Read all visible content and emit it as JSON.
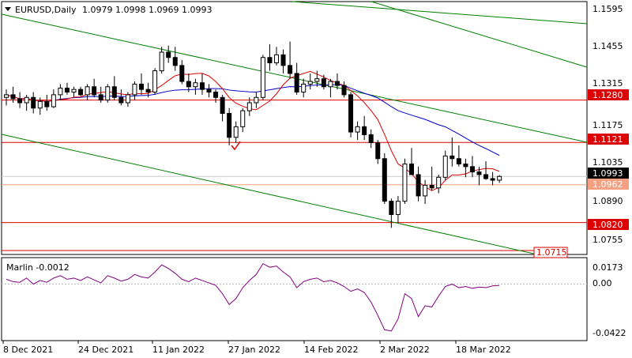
{
  "header": {
    "symbol": "EURUSD,Daily",
    "ohlc": "1.0979 1.0998 1.0969 1.0993"
  },
  "indicator": {
    "label": "Marlin -0.0012",
    "axis_labels": [
      "0.0173",
      "0.00",
      "-0.0422"
    ],
    "color": "#800080"
  },
  "price_axis": {
    "labels": [
      "1.1595",
      "1.1455",
      "1.1315",
      "1.1175",
      "1.1035",
      "1.0890",
      "1.0755"
    ]
  },
  "time_axis": {
    "labels": [
      "8 Dec 2021",
      "24 Dec 2021",
      "11 Jan 2022",
      "27 Jan 2022",
      "14 Feb 2022",
      "2 Mar 2022",
      "18 Mar 2022"
    ]
  },
  "colors": {
    "trend_channel": "#008000",
    "horizontal_level": "#dd0000",
    "fast_ma": "#dd0000",
    "slow_ma": "#0000cc",
    "oscillator": "#800080",
    "current_price_box": "#000000",
    "bid_line": "#f5a080"
  },
  "chart_data": {
    "type": "candlestick",
    "symbol": "EURUSD",
    "timeframe": "Daily",
    "ylim": [
      1.07,
      1.165
    ],
    "current_price": 1.0993,
    "bid_level": 1.0962,
    "horizontal_levels": [
      1.128,
      1.1121,
      1.082,
      1.0715
    ],
    "ohlc": [
      [
        1.129,
        1.132,
        1.126,
        1.13
      ],
      [
        1.13,
        1.133,
        1.127,
        1.1285
      ],
      [
        1.1285,
        1.131,
        1.125,
        1.127
      ],
      [
        1.127,
        1.13,
        1.124,
        1.129
      ],
      [
        1.129,
        1.131,
        1.123,
        1.125
      ],
      [
        1.125,
        1.129,
        1.1225,
        1.1275
      ],
      [
        1.1275,
        1.13,
        1.124,
        1.1255
      ],
      [
        1.1255,
        1.132,
        1.125,
        1.13
      ],
      [
        1.13,
        1.134,
        1.128,
        1.1325
      ],
      [
        1.1325,
        1.1345,
        1.13,
        1.131
      ],
      [
        1.131,
        1.133,
        1.129,
        1.132
      ],
      [
        1.132,
        1.133,
        1.1295,
        1.13
      ],
      [
        1.13,
        1.134,
        1.128,
        1.133
      ],
      [
        1.133,
        1.136,
        1.129,
        1.13
      ],
      [
        1.13,
        1.133,
        1.127,
        1.128
      ],
      [
        1.128,
        1.134,
        1.127,
        1.133
      ],
      [
        1.133,
        1.137,
        1.128,
        1.129
      ],
      [
        1.129,
        1.132,
        1.126,
        1.127
      ],
      [
        1.127,
        1.131,
        1.1255,
        1.13
      ],
      [
        1.13,
        1.135,
        1.128,
        1.134
      ],
      [
        1.134,
        1.138,
        1.13,
        1.132
      ],
      [
        1.132,
        1.1345,
        1.129,
        1.131
      ],
      [
        1.131,
        1.14,
        1.13,
        1.139
      ],
      [
        1.139,
        1.148,
        1.138,
        1.146
      ],
      [
        1.146,
        1.1485,
        1.142,
        1.144
      ],
      [
        1.144,
        1.148,
        1.139,
        1.141
      ],
      [
        1.141,
        1.143,
        1.134,
        1.135
      ],
      [
        1.135,
        1.138,
        1.131,
        1.133
      ],
      [
        1.133,
        1.136,
        1.13,
        1.1345
      ],
      [
        1.1345,
        1.138,
        1.13,
        1.132
      ],
      [
        1.132,
        1.134,
        1.129,
        1.131
      ],
      [
        1.131,
        1.132,
        1.127,
        1.129
      ],
      [
        1.129,
        1.13,
        1.12,
        1.123
      ],
      [
        1.123,
        1.125,
        1.111,
        1.114
      ],
      [
        1.114,
        1.12,
        1.112,
        1.118
      ],
      [
        1.118,
        1.125,
        1.116,
        1.124
      ],
      [
        1.124,
        1.129,
        1.122,
        1.127
      ],
      [
        1.127,
        1.131,
        1.125,
        1.129
      ],
      [
        1.129,
        1.145,
        1.128,
        1.144
      ],
      [
        1.144,
        1.149,
        1.139,
        1.142
      ],
      [
        1.142,
        1.148,
        1.141,
        1.145
      ],
      [
        1.145,
        1.147,
        1.138,
        1.141
      ],
      [
        1.141,
        1.15,
        1.136,
        1.138
      ],
      [
        1.138,
        1.142,
        1.13,
        1.131
      ],
      [
        1.131,
        1.136,
        1.129,
        1.134
      ],
      [
        1.134,
        1.138,
        1.132,
        1.135
      ],
      [
        1.135,
        1.139,
        1.133,
        1.136
      ],
      [
        1.136,
        1.1375,
        1.132,
        1.133
      ],
      [
        1.133,
        1.136,
        1.129,
        1.135
      ],
      [
        1.135,
        1.138,
        1.132,
        1.1335
      ],
      [
        1.1335,
        1.135,
        1.129,
        1.13
      ],
      [
        1.13,
        1.131,
        1.114,
        1.116
      ],
      [
        1.116,
        1.12,
        1.113,
        1.118
      ],
      [
        1.118,
        1.122,
        1.113,
        1.115
      ],
      [
        1.115,
        1.117,
        1.11,
        1.112
      ],
      [
        1.112,
        1.113,
        1.104,
        1.106
      ],
      [
        1.106,
        1.108,
        1.089,
        1.09
      ],
      [
        1.09,
        1.091,
        1.08,
        1.085
      ],
      [
        1.085,
        1.092,
        1.082,
        1.09
      ],
      [
        1.09,
        1.106,
        1.089,
        1.104
      ],
      [
        1.104,
        1.11,
        1.1,
        1.1
      ],
      [
        1.1,
        1.103,
        1.09,
        1.092
      ],
      [
        1.092,
        1.098,
        1.089,
        1.096
      ],
      [
        1.096,
        1.103,
        1.094,
        1.095
      ],
      [
        1.095,
        1.1,
        1.093,
        1.099
      ],
      [
        1.099,
        1.109,
        1.098,
        1.107
      ],
      [
        1.107,
        1.114,
        1.103,
        1.106
      ],
      [
        1.106,
        1.111,
        1.103,
        1.104
      ],
      [
        1.104,
        1.106,
        1.099,
        1.103
      ],
      [
        1.103,
        1.107,
        1.099,
        1.101
      ],
      [
        1.101,
        1.103,
        1.096,
        1.1
      ],
      [
        1.1,
        1.105,
        1.098,
        1.0985
      ],
      [
        1.0985,
        1.101,
        1.096,
        1.0979
      ],
      [
        1.0979,
        1.0998,
        1.0969,
        1.0993
      ]
    ],
    "oscillator": [
      0.004,
      0.002,
      0.0015,
      0.005,
      0.0,
      0.003,
      0.0015,
      0.005,
      0.007,
      0.004,
      0.005,
      0.003,
      0.006,
      0.0035,
      0.001,
      0.007,
      0.005,
      0.0025,
      0.004,
      0.008,
      0.006,
      0.005,
      0.01,
      0.016,
      0.013,
      0.009,
      0.004,
      0.002,
      0.005,
      0.003,
      0.001,
      -0.001,
      -0.008,
      -0.017,
      -0.012,
      -0.003,
      0.003,
      0.008,
      0.017,
      0.014,
      0.015,
      0.01,
      0.006,
      -0.003,
      0.002,
      0.004,
      0.005,
      0.002,
      0.003,
      0.001,
      -0.002,
      -0.006,
      -0.004,
      -0.007,
      -0.015,
      -0.026,
      -0.038,
      -0.039,
      -0.029,
      -0.008,
      -0.012,
      -0.027,
      -0.018,
      -0.019,
      -0.01,
      -0.002,
      0.0,
      -0.003,
      -0.002,
      -0.0035,
      -0.0025,
      -0.003,
      -0.0015,
      -0.0012
    ],
    "oscillator_ylim": [
      -0.047,
      0.022
    ]
  }
}
